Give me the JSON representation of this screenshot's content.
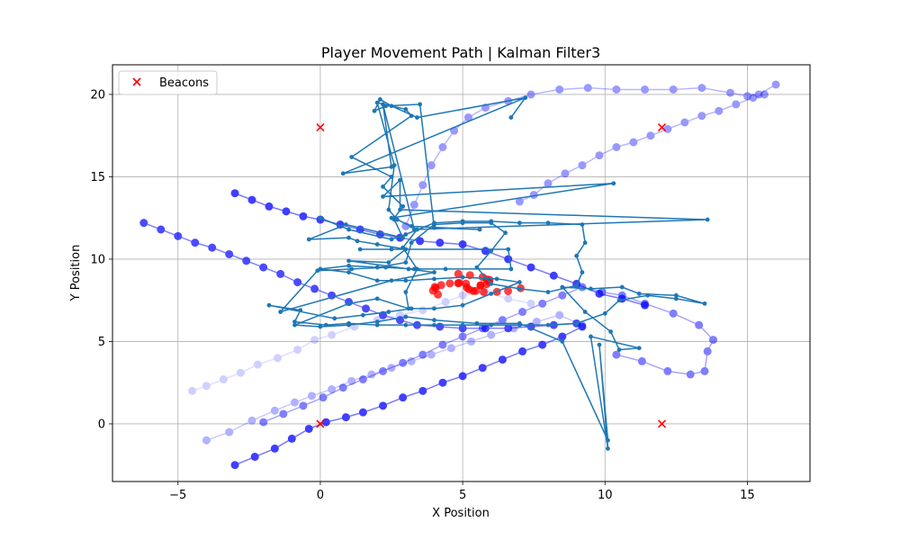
{
  "chart_data": {
    "type": "scatter",
    "title": "Player Movement Path | Kalman Filter3",
    "xlabel": "X Position",
    "ylabel": "Y Position",
    "xlim": [
      -7.3,
      17.2
    ],
    "ylim": [
      -3.5,
      21.8
    ],
    "xticks": [
      -5,
      0,
      5,
      10,
      15
    ],
    "yticks": [
      0,
      5,
      10,
      15,
      20
    ],
    "grid": true,
    "legend": {
      "placement": "top-left",
      "entries": [
        "Beacons"
      ]
    },
    "colors": {
      "beacon": "#ff0000",
      "raw_path": "#0000ff",
      "filtered_path": "#1f77b4",
      "cluster": "#ff0000"
    },
    "beacons": [
      {
        "x": 0,
        "y": 18
      },
      {
        "x": 12,
        "y": 18
      },
      {
        "x": 0,
        "y": 0
      },
      {
        "x": 12,
        "y": 0
      }
    ],
    "raw_paths": [
      {
        "opacity": 0.18,
        "points": [
          [
            -4.5,
            2.0
          ],
          [
            -4.0,
            2.3
          ],
          [
            -3.4,
            2.7
          ],
          [
            -2.8,
            3.1
          ],
          [
            -2.2,
            3.6
          ],
          [
            -1.5,
            4.0
          ],
          [
            -0.8,
            4.5
          ],
          [
            -0.2,
            5.1
          ],
          [
            0.4,
            5.4
          ],
          [
            1.2,
            5.9
          ],
          [
            2.0,
            6.3
          ],
          [
            2.8,
            6.6
          ],
          [
            3.6,
            6.9
          ],
          [
            4.4,
            7.4
          ],
          [
            5.0,
            7.8
          ],
          [
            5.8,
            8.0
          ],
          [
            6.6,
            7.6
          ],
          [
            7.4,
            7.3
          ]
        ]
      },
      {
        "opacity": 0.3,
        "points": [
          [
            -4.0,
            -1.0
          ],
          [
            -3.2,
            -0.5
          ],
          [
            -2.4,
            0.2
          ],
          [
            -1.6,
            0.8
          ],
          [
            -0.9,
            1.3
          ],
          [
            -0.3,
            1.7
          ],
          [
            0.4,
            2.1
          ],
          [
            1.1,
            2.6
          ],
          [
            1.8,
            3.0
          ],
          [
            2.5,
            3.4
          ],
          [
            3.2,
            3.8
          ],
          [
            3.9,
            4.2
          ],
          [
            4.6,
            4.6
          ],
          [
            5.3,
            5.0
          ],
          [
            6.0,
            5.4
          ],
          [
            6.8,
            5.8
          ],
          [
            7.6,
            6.2
          ],
          [
            8.4,
            6.6
          ],
          [
            9.2,
            6.0
          ]
        ]
      },
      {
        "opacity": 0.5,
        "points": [
          [
            -2.0,
            0.1
          ],
          [
            -1.3,
            0.6
          ],
          [
            -0.6,
            1.1
          ],
          [
            0.1,
            1.6
          ],
          [
            0.8,
            2.2
          ],
          [
            1.5,
            2.7
          ],
          [
            2.2,
            3.2
          ],
          [
            2.9,
            3.7
          ],
          [
            3.6,
            4.2
          ],
          [
            4.3,
            4.8
          ],
          [
            5.0,
            5.3
          ],
          [
            5.7,
            5.8
          ],
          [
            6.4,
            6.3
          ],
          [
            7.1,
            6.8
          ],
          [
            7.8,
            7.3
          ],
          [
            8.5,
            7.8
          ],
          [
            9.2,
            8.3
          ],
          [
            9.9,
            8.0
          ],
          [
            10.6,
            7.8
          ],
          [
            11.4,
            7.3
          ],
          [
            12.4,
            6.7
          ],
          [
            13.3,
            6.0
          ],
          [
            13.8,
            5.1
          ],
          [
            13.6,
            4.4
          ],
          [
            13.5,
            3.2
          ],
          [
            13.0,
            3.0
          ],
          [
            12.2,
            3.2
          ],
          [
            11.3,
            3.8
          ],
          [
            10.4,
            4.2
          ]
        ]
      },
      {
        "opacity": 0.75,
        "points": [
          [
            -3.0,
            -2.5
          ],
          [
            -2.3,
            -2.0
          ],
          [
            -1.6,
            -1.5
          ],
          [
            -1.0,
            -0.9
          ],
          [
            -0.4,
            -0.3
          ],
          [
            0.2,
            0.1
          ],
          [
            0.9,
            0.4
          ],
          [
            1.5,
            0.7
          ],
          [
            2.2,
            1.1
          ],
          [
            2.9,
            1.6
          ],
          [
            3.6,
            2.0
          ],
          [
            4.3,
            2.5
          ],
          [
            5.0,
            2.9
          ],
          [
            5.7,
            3.4
          ],
          [
            6.4,
            3.9
          ],
          [
            7.1,
            4.4
          ],
          [
            7.8,
            4.8
          ],
          [
            8.5,
            5.3
          ],
          [
            9.2,
            5.9
          ]
        ]
      },
      {
        "opacity": 0.7,
        "points": [
          [
            -6.2,
            12.2
          ],
          [
            -5.6,
            11.8
          ],
          [
            -5.0,
            11.4
          ],
          [
            -4.4,
            11.0
          ],
          [
            -3.8,
            10.7
          ],
          [
            -3.2,
            10.3
          ],
          [
            -2.6,
            9.9
          ],
          [
            -2.0,
            9.5
          ],
          [
            -1.4,
            9.1
          ],
          [
            -0.8,
            8.6
          ],
          [
            -0.2,
            8.2
          ],
          [
            0.4,
            7.8
          ],
          [
            1.0,
            7.4
          ],
          [
            1.6,
            7.0
          ],
          [
            2.2,
            6.6
          ],
          [
            2.8,
            6.3
          ],
          [
            3.4,
            6.0
          ],
          [
            4.2,
            5.9
          ],
          [
            5.0,
            5.8
          ],
          [
            5.8,
            5.8
          ],
          [
            6.6,
            5.8
          ],
          [
            7.4,
            5.9
          ],
          [
            8.2,
            6.0
          ],
          [
            9.0,
            6.1
          ]
        ]
      },
      {
        "opacity": 0.75,
        "points": [
          [
            -3.0,
            14.0
          ],
          [
            -2.4,
            13.6
          ],
          [
            -1.8,
            13.2
          ],
          [
            -1.2,
            12.9
          ],
          [
            -0.6,
            12.6
          ],
          [
            0.0,
            12.4
          ],
          [
            0.7,
            12.1
          ],
          [
            1.4,
            11.8
          ],
          [
            2.1,
            11.5
          ],
          [
            2.8,
            11.3
          ],
          [
            3.5,
            11.1
          ],
          [
            4.2,
            11.0
          ],
          [
            5.0,
            10.9
          ],
          [
            5.8,
            10.5
          ],
          [
            6.6,
            10.0
          ],
          [
            7.4,
            9.5
          ],
          [
            8.2,
            9.0
          ],
          [
            9.0,
            8.5
          ],
          [
            9.8,
            7.9
          ],
          [
            10.6,
            7.6
          ],
          [
            11.4,
            7.2
          ]
        ]
      },
      {
        "opacity": 0.4,
        "points": [
          [
            3.0,
            12.0
          ],
          [
            3.3,
            13.3
          ],
          [
            3.6,
            14.5
          ],
          [
            3.9,
            15.7
          ],
          [
            4.3,
            16.8
          ],
          [
            4.7,
            17.8
          ],
          [
            5.2,
            18.6
          ],
          [
            5.8,
            19.2
          ],
          [
            6.6,
            19.6
          ],
          [
            7.4,
            20.0
          ],
          [
            8.4,
            20.3
          ],
          [
            9.4,
            20.4
          ],
          [
            10.4,
            20.3
          ],
          [
            11.4,
            20.3
          ],
          [
            12.4,
            20.3
          ],
          [
            13.4,
            20.4
          ],
          [
            14.4,
            20.1
          ],
          [
            15.0,
            19.9
          ],
          [
            15.4,
            20.0
          ],
          [
            16.0,
            20.6
          ]
        ]
      },
      {
        "opacity": 0.4,
        "points": [
          [
            7.0,
            13.5
          ],
          [
            7.5,
            13.9
          ],
          [
            8.0,
            14.6
          ],
          [
            8.6,
            15.2
          ],
          [
            9.2,
            15.7
          ],
          [
            9.8,
            16.3
          ],
          [
            10.4,
            16.8
          ],
          [
            11.0,
            17.1
          ],
          [
            11.6,
            17.5
          ],
          [
            12.2,
            17.9
          ],
          [
            12.8,
            18.3
          ],
          [
            13.4,
            18.7
          ],
          [
            14.0,
            19.0
          ],
          [
            14.6,
            19.4
          ],
          [
            15.2,
            19.8
          ],
          [
            15.6,
            20.0
          ]
        ]
      }
    ],
    "filtered_path": [
      [
        0.0,
        12.5
      ],
      [
        1.0,
        11.8
      ],
      [
        2.5,
        11.2
      ],
      [
        3.0,
        11.5
      ],
      [
        4.0,
        12.2
      ],
      [
        5.0,
        12.3
      ],
      [
        6.0,
        12.3
      ],
      [
        7.0,
        12.2
      ],
      [
        8.0,
        12.2
      ],
      [
        9.2,
        12.1
      ],
      [
        9.3,
        11.0
      ],
      [
        9.0,
        10.2
      ],
      [
        9.2,
        9.2
      ],
      [
        9.0,
        8.4
      ],
      [
        8.0,
        8.0
      ],
      [
        7.0,
        8.2
      ],
      [
        6.0,
        8.5
      ],
      [
        5.5,
        9.5
      ],
      [
        6.0,
        10.5
      ],
      [
        6.5,
        11.6
      ],
      [
        6.0,
        12.2
      ],
      [
        5.0,
        12.2
      ],
      [
        4.0,
        12.1
      ],
      [
        3.2,
        11.0
      ],
      [
        3.0,
        9.8
      ],
      [
        2.0,
        9.5
      ],
      [
        1.0,
        9.6
      ],
      [
        0.0,
        9.4
      ],
      [
        1.0,
        9.2
      ],
      [
        2.0,
        8.7
      ],
      [
        3.0,
        8.7
      ],
      [
        4.0,
        8.8
      ],
      [
        5.0,
        8.9
      ],
      [
        6.2,
        8.8
      ],
      [
        7.0,
        8.6
      ],
      [
        6.0,
        7.9
      ],
      [
        5.0,
        7.2
      ],
      [
        4.0,
        7.0
      ],
      [
        3.2,
        7.0
      ],
      [
        2.4,
        6.8
      ],
      [
        1.5,
        6.6
      ],
      [
        0.5,
        6.4
      ],
      [
        -1.8,
        7.2
      ],
      [
        -0.7,
        6.9
      ],
      [
        -0.9,
        6.2
      ],
      [
        0.2,
        6.0
      ],
      [
        1.0,
        6.1
      ],
      [
        2.0,
        6.0
      ],
      [
        3.0,
        6.0
      ],
      [
        4.0,
        6.0
      ],
      [
        5.0,
        6.0
      ],
      [
        6.0,
        6.0
      ],
      [
        7.0,
        6.0
      ],
      [
        8.0,
        6.0
      ],
      [
        9.0,
        6.1
      ],
      [
        10.0,
        6.7
      ],
      [
        10.5,
        7.5
      ],
      [
        11.5,
        7.8
      ],
      [
        12.5,
        7.6
      ],
      [
        13.5,
        7.3
      ],
      [
        12.5,
        7.8
      ],
      [
        11.2,
        7.9
      ],
      [
        10.6,
        8.3
      ],
      [
        9.5,
        8.2
      ],
      [
        8.5,
        8.3
      ],
      [
        9.3,
        6.8
      ],
      [
        10.2,
        5.6
      ],
      [
        10.5,
        4.5
      ],
      [
        11.2,
        4.6
      ],
      [
        9.5,
        5.3
      ],
      [
        10.1,
        -1.5
      ],
      [
        9.8,
        4.8
      ],
      [
        10.1,
        -1.0
      ],
      [
        8.5,
        5.0
      ],
      [
        7.0,
        6.1
      ],
      [
        5.5,
        6.1
      ],
      [
        4.0,
        6.3
      ],
      [
        3.0,
        6.5
      ],
      [
        2.0,
        6.2
      ],
      [
        1.0,
        6.0
      ],
      [
        0.0,
        5.9
      ],
      [
        -0.9,
        6.0
      ],
      [
        1.0,
        7.3
      ],
      [
        2.0,
        7.6
      ],
      [
        3.1,
        7.0
      ],
      [
        3.0,
        8.0
      ],
      [
        3.4,
        9.4
      ],
      [
        2.9,
        10.7
      ],
      [
        3.4,
        11.8
      ],
      [
        2.6,
        12.5
      ],
      [
        2.9,
        13.2
      ],
      [
        2.2,
        14.4
      ],
      [
        2.5,
        15.0
      ],
      [
        1.1,
        16.2
      ],
      [
        3.2,
        18.7
      ],
      [
        3.0,
        19.1
      ],
      [
        2.0,
        19.5
      ],
      [
        2.6,
        15.7
      ],
      [
        2.4,
        13.0
      ],
      [
        2.7,
        12.4
      ],
      [
        3.2,
        12.0
      ],
      [
        5.6,
        11.8
      ],
      [
        4.0,
        11.9
      ],
      [
        3.5,
        19.4
      ],
      [
        2.3,
        19.3
      ],
      [
        1.9,
        19.0
      ],
      [
        2.1,
        19.7
      ],
      [
        2.5,
        19.3
      ],
      [
        3.4,
        18.6
      ],
      [
        7.2,
        19.8
      ],
      [
        6.7,
        18.6
      ],
      [
        7.2,
        19.8
      ],
      [
        0.8,
        15.2
      ],
      [
        2.5,
        15.6
      ],
      [
        2.2,
        19.4
      ],
      [
        3.3,
        11.8
      ],
      [
        13.6,
        12.4
      ],
      [
        2.8,
        13.0
      ],
      [
        2.8,
        14.8
      ],
      [
        2.2,
        13.8
      ],
      [
        10.3,
        14.6
      ],
      [
        2.5,
        12.5
      ],
      [
        2.6,
        12.4
      ],
      [
        2.9,
        11.3
      ],
      [
        0.9,
        12.1
      ],
      [
        -0.4,
        11.2
      ],
      [
        1.0,
        11.3
      ],
      [
        1.3,
        11.1
      ],
      [
        2.0,
        10.9
      ],
      [
        3.0,
        10.6
      ],
      [
        2.4,
        9.8
      ],
      [
        1.0,
        9.9
      ],
      [
        3.1,
        9.4
      ],
      [
        4.0,
        9.2
      ],
      [
        2.5,
        8.7
      ],
      [
        -1.4,
        6.8
      ],
      [
        -0.1,
        9.3
      ],
      [
        1.1,
        9.4
      ],
      [
        2.3,
        9.5
      ],
      [
        3.3,
        9.4
      ],
      [
        4.4,
        9.4
      ],
      [
        6.7,
        9.4
      ],
      [
        6.6,
        10.6
      ],
      [
        2.5,
        10.6
      ],
      [
        1.4,
        10.6
      ]
    ],
    "cluster_center": [
      5.3,
      8.4
    ]
  }
}
